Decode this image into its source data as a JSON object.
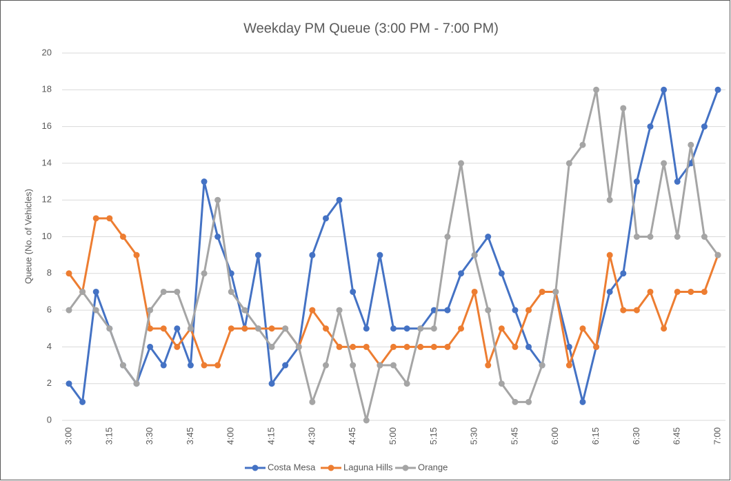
{
  "chart_data": {
    "type": "line",
    "title": "Weekday PM Queue (3:00 PM - 7:00 PM)",
    "y_label": "Queue (No. of Vehicles)",
    "categories": [
      "3:00",
      null,
      null,
      "3:15",
      null,
      null,
      "3:30",
      null,
      null,
      "3:45",
      null,
      null,
      "4:00",
      null,
      null,
      "4:15",
      null,
      null,
      "4:30",
      null,
      null,
      "4:45",
      null,
      null,
      "5:00",
      null,
      null,
      "5:15",
      null,
      null,
      "5:30",
      null,
      null,
      "5:45",
      null,
      null,
      "6:00",
      null,
      null,
      "6:15",
      null,
      null,
      "6:30",
      null,
      null,
      "6:45",
      null,
      null,
      "7:00"
    ],
    "series": [
      {
        "name": "Costa Mesa",
        "color": "#4472c4",
        "values": [
          2,
          1,
          7,
          5,
          3,
          2,
          4,
          3,
          5,
          3,
          13,
          10,
          8,
          5,
          9,
          2,
          3,
          4,
          9,
          11,
          12,
          7,
          5,
          9,
          5,
          5,
          5,
          6,
          6,
          8,
          9,
          10,
          8,
          6,
          4,
          3,
          7,
          4,
          1,
          4,
          7,
          8,
          13,
          16,
          18,
          13,
          14,
          16,
          18
        ]
      },
      {
        "name": "Laguna Hills",
        "color": "#ed7d31",
        "values": [
          8,
          7,
          11,
          11,
          10,
          9,
          5,
          5,
          4,
          5,
          3,
          3,
          5,
          5,
          5,
          5,
          5,
          4,
          6,
          5,
          4,
          4,
          4,
          3,
          4,
          4,
          4,
          4,
          4,
          5,
          7,
          3,
          5,
          4,
          6,
          7,
          7,
          3,
          5,
          4,
          9,
          6,
          6,
          7,
          5,
          7,
          7,
          7,
          9
        ]
      },
      {
        "name": "Orange",
        "color": "#a5a5a5",
        "values": [
          6,
          7,
          6,
          5,
          3,
          2,
          6,
          7,
          7,
          5,
          8,
          12,
          7,
          6,
          5,
          4,
          5,
          4,
          1,
          3,
          6,
          3,
          0,
          3,
          3,
          2,
          5,
          5,
          10,
          14,
          9,
          6,
          2,
          1,
          1,
          3,
          7,
          14,
          15,
          18,
          12,
          17,
          10,
          10,
          14,
          10,
          15,
          10,
          9
        ]
      }
    ],
    "ylim": [
      0,
      20
    ],
    "yticks": [
      0,
      2,
      4,
      6,
      8,
      10,
      12,
      14,
      16,
      18,
      20
    ],
    "grid": true,
    "legend": "bottom"
  }
}
